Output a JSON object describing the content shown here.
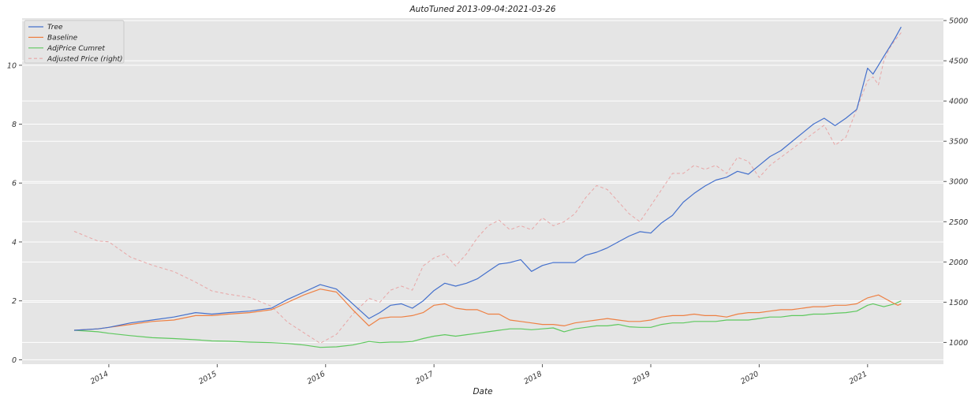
{
  "chart_data": {
    "type": "line",
    "title": "AutoTuned 2013-09-04:2021-03-26",
    "xlabel": "Date",
    "ylabel": "",
    "ylabel_right": "",
    "grid": true,
    "legend_placement": "top-left",
    "x_ticks": [
      "2014",
      "2015",
      "2016",
      "2017",
      "2018",
      "2019",
      "2020",
      "2021"
    ],
    "xlim": [
      2013.2,
      2021.7
    ],
    "ylim": [
      -0.15,
      11.6
    ],
    "y_ticks": [
      "0",
      "2",
      "4",
      "6",
      "8",
      "10"
    ],
    "ylim_right": [
      730,
      5030
    ],
    "y_ticks_right": [
      "1000",
      "1500",
      "2000",
      "2500",
      "3000",
      "3500",
      "4000",
      "4500",
      "5000"
    ],
    "colors": {
      "tree": "#4470cc",
      "baseline": "#ee8043",
      "adjcum": "#5ec85e",
      "adjprice": "#e8a5a5",
      "plot_bg": "#e5e5e5",
      "grid": "#ffffff"
    },
    "series": [
      {
        "name": "Tree",
        "axis": "left",
        "x": [
          2013.68,
          2013.9,
          2014.0,
          2014.2,
          2014.4,
          2014.6,
          2014.8,
          2014.95,
          2015.1,
          2015.3,
          2015.5,
          2015.65,
          2015.8,
          2015.95,
          2016.1,
          2016.25,
          2016.4,
          2016.5,
          2016.6,
          2016.7,
          2016.8,
          2016.9,
          2017.0,
          2017.1,
          2017.2,
          2017.3,
          2017.4,
          2017.5,
          2017.6,
          2017.7,
          2017.8,
          2017.9,
          2018.0,
          2018.1,
          2018.2,
          2018.3,
          2018.4,
          2018.5,
          2018.6,
          2018.7,
          2018.8,
          2018.9,
          2019.0,
          2019.1,
          2019.2,
          2019.3,
          2019.4,
          2019.5,
          2019.6,
          2019.7,
          2019.8,
          2019.9,
          2020.0,
          2020.1,
          2020.2,
          2020.3,
          2020.4,
          2020.5,
          2020.6,
          2020.7,
          2020.8,
          2020.9,
          2021.0,
          2021.05,
          2021.1,
          2021.15,
          2021.2,
          2021.25,
          2021.28,
          2021.31
        ],
        "values": [
          1.0,
          1.05,
          1.1,
          1.25,
          1.35,
          1.45,
          1.6,
          1.55,
          1.6,
          1.65,
          1.75,
          2.05,
          2.3,
          2.55,
          2.4,
          1.9,
          1.4,
          1.6,
          1.85,
          1.9,
          1.75,
          2.0,
          2.35,
          2.6,
          2.5,
          2.6,
          2.75,
          3.0,
          3.25,
          3.3,
          3.4,
          3.0,
          3.2,
          3.3,
          3.3,
          3.3,
          3.55,
          3.65,
          3.8,
          4.0,
          4.2,
          4.35,
          4.3,
          4.65,
          4.9,
          5.35,
          5.65,
          5.9,
          6.1,
          6.2,
          6.4,
          6.3,
          6.6,
          6.9,
          7.1,
          7.4,
          7.7,
          8.0,
          8.2,
          7.95,
          8.2,
          8.5,
          9.9,
          9.7,
          10.0,
          10.3,
          10.6,
          10.9,
          11.1,
          11.3
        ]
      },
      {
        "name": "Baseline",
        "axis": "left",
        "x": [
          2013.68,
          2013.9,
          2014.0,
          2014.2,
          2014.4,
          2014.6,
          2014.8,
          2014.95,
          2015.1,
          2015.3,
          2015.5,
          2015.65,
          2015.8,
          2015.95,
          2016.1,
          2016.25,
          2016.4,
          2016.5,
          2016.6,
          2016.7,
          2016.8,
          2016.9,
          2017.0,
          2017.1,
          2017.2,
          2017.3,
          2017.4,
          2017.5,
          2017.6,
          2017.7,
          2017.8,
          2017.9,
          2018.0,
          2018.1,
          2018.2,
          2018.3,
          2018.4,
          2018.5,
          2018.6,
          2018.7,
          2018.8,
          2018.9,
          2019.0,
          2019.1,
          2019.2,
          2019.3,
          2019.4,
          2019.5,
          2019.6,
          2019.7,
          2019.8,
          2019.9,
          2020.0,
          2020.1,
          2020.2,
          2020.3,
          2020.4,
          2020.5,
          2020.6,
          2020.7,
          2020.8,
          2020.9,
          2021.0,
          2021.05,
          2021.1,
          2021.15,
          2021.2,
          2021.25,
          2021.28,
          2021.31
        ],
        "values": [
          1.0,
          1.05,
          1.1,
          1.2,
          1.3,
          1.35,
          1.5,
          1.5,
          1.55,
          1.6,
          1.7,
          1.95,
          2.2,
          2.4,
          2.3,
          1.7,
          1.15,
          1.4,
          1.45,
          1.45,
          1.5,
          1.6,
          1.85,
          1.9,
          1.75,
          1.7,
          1.7,
          1.55,
          1.55,
          1.35,
          1.3,
          1.25,
          1.2,
          1.2,
          1.15,
          1.25,
          1.3,
          1.35,
          1.4,
          1.35,
          1.3,
          1.3,
          1.35,
          1.45,
          1.5,
          1.5,
          1.55,
          1.5,
          1.5,
          1.45,
          1.55,
          1.6,
          1.6,
          1.65,
          1.7,
          1.7,
          1.75,
          1.8,
          1.8,
          1.85,
          1.85,
          1.9,
          2.1,
          2.15,
          2.2,
          2.1,
          2.0,
          1.9,
          1.85,
          1.9
        ]
      },
      {
        "name": "AdjPrice Cumret",
        "axis": "left",
        "x": [
          2013.68,
          2013.9,
          2014.0,
          2014.2,
          2014.4,
          2014.6,
          2014.8,
          2014.95,
          2015.1,
          2015.3,
          2015.5,
          2015.65,
          2015.8,
          2015.95,
          2016.1,
          2016.25,
          2016.4,
          2016.5,
          2016.6,
          2016.7,
          2016.8,
          2016.9,
          2017.0,
          2017.1,
          2017.2,
          2017.3,
          2017.4,
          2017.5,
          2017.6,
          2017.7,
          2017.8,
          2017.9,
          2018.0,
          2018.1,
          2018.2,
          2018.3,
          2018.4,
          2018.5,
          2018.6,
          2018.7,
          2018.8,
          2018.9,
          2019.0,
          2019.1,
          2019.2,
          2019.3,
          2019.4,
          2019.5,
          2019.6,
          2019.7,
          2019.8,
          2019.9,
          2020.0,
          2020.1,
          2020.2,
          2020.3,
          2020.4,
          2020.5,
          2020.6,
          2020.7,
          2020.8,
          2020.9,
          2021.0,
          2021.05,
          2021.1,
          2021.15,
          2021.2,
          2021.25,
          2021.28,
          2021.31
        ],
        "values": [
          1.0,
          0.95,
          0.9,
          0.82,
          0.75,
          0.72,
          0.68,
          0.64,
          0.63,
          0.6,
          0.58,
          0.55,
          0.5,
          0.42,
          0.44,
          0.5,
          0.62,
          0.58,
          0.6,
          0.6,
          0.62,
          0.72,
          0.8,
          0.85,
          0.8,
          0.85,
          0.9,
          0.95,
          1.0,
          1.05,
          1.05,
          1.02,
          1.05,
          1.08,
          0.95,
          1.05,
          1.1,
          1.15,
          1.15,
          1.2,
          1.12,
          1.1,
          1.1,
          1.2,
          1.25,
          1.25,
          1.3,
          1.3,
          1.3,
          1.35,
          1.35,
          1.35,
          1.4,
          1.45,
          1.45,
          1.5,
          1.5,
          1.55,
          1.55,
          1.58,
          1.6,
          1.65,
          1.85,
          1.9,
          1.85,
          1.8,
          1.85,
          1.9,
          1.95,
          2.0
        ]
      },
      {
        "name": "Adjusted Price (right)",
        "axis": "right",
        "x": [
          2013.68,
          2013.9,
          2014.0,
          2014.2,
          2014.4,
          2014.6,
          2014.8,
          2014.95,
          2015.1,
          2015.3,
          2015.5,
          2015.65,
          2015.8,
          2015.95,
          2016.1,
          2016.25,
          2016.4,
          2016.5,
          2016.6,
          2016.7,
          2016.8,
          2016.9,
          2017.0,
          2017.1,
          2017.2,
          2017.3,
          2017.4,
          2017.5,
          2017.6,
          2017.7,
          2017.8,
          2017.9,
          2018.0,
          2018.1,
          2018.2,
          2018.3,
          2018.4,
          2018.5,
          2018.6,
          2018.7,
          2018.8,
          2018.9,
          2019.0,
          2019.1,
          2019.2,
          2019.3,
          2019.4,
          2019.5,
          2019.6,
          2019.7,
          2019.8,
          2019.9,
          2020.0,
          2020.1,
          2020.2,
          2020.3,
          2020.4,
          2020.5,
          2020.6,
          2020.7,
          2020.8,
          2020.9,
          2021.0,
          2021.05,
          2021.1,
          2021.15,
          2021.2,
          2021.25,
          2021.28,
          2021.31
        ],
        "values": [
          2380,
          2260,
          2250,
          2060,
          1960,
          1880,
          1750,
          1640,
          1600,
          1560,
          1450,
          1250,
          1120,
          990,
          1100,
          1350,
          1550,
          1500,
          1650,
          1700,
          1650,
          1950,
          2050,
          2100,
          1950,
          2100,
          2300,
          2450,
          2520,
          2400,
          2450,
          2400,
          2550,
          2450,
          2500,
          2600,
          2800,
          2950,
          2900,
          2750,
          2600,
          2500,
          2700,
          2900,
          3100,
          3100,
          3200,
          3150,
          3200,
          3100,
          3300,
          3250,
          3050,
          3200,
          3300,
          3400,
          3500,
          3600,
          3700,
          3450,
          3550,
          3900,
          4250,
          4300,
          4200,
          4500,
          4650,
          4750,
          4800,
          4850
        ]
      }
    ]
  }
}
